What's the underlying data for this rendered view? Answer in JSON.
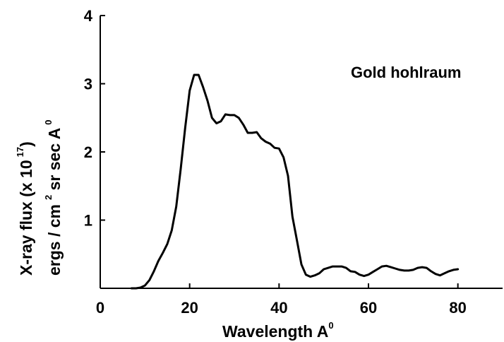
{
  "chart_data": {
    "type": "line",
    "annotation": "Gold hohlraum",
    "xlabel": "Wavelength A",
    "xlabel_sup": "0",
    "ylabel_line1": "X-ray flux (x 10",
    "ylabel_line1_sup": "17",
    "ylabel_line1_end": ")",
    "ylabel_line2_a": "ergs / cm",
    "ylabel_line2_sup1": "2",
    "ylabel_line2_b": " sr sec A",
    "ylabel_line2_sup2": "0",
    "xlim": [
      0,
      90
    ],
    "ylim": [
      0,
      4
    ],
    "x_ticks": [
      0,
      20,
      40,
      60,
      80
    ],
    "x_tick_labels": [
      "0",
      "20",
      "40",
      "60",
      "80"
    ],
    "y_ticks": [
      1,
      2,
      3,
      4
    ],
    "y_tick_labels": [
      "1",
      "2",
      "3",
      "4"
    ],
    "grid": false,
    "legend": "none",
    "line_color": "#000000",
    "series": [
      {
        "x": [
          7,
          8,
          9,
          10,
          11,
          12,
          13,
          14,
          15,
          16,
          17,
          18,
          19,
          20,
          21,
          22,
          23,
          24,
          25,
          26,
          27,
          28,
          29,
          30,
          31,
          32,
          33,
          34,
          35,
          36,
          37,
          38,
          39,
          40,
          41,
          42,
          43,
          44,
          45,
          46,
          47,
          48,
          49,
          50,
          51,
          52,
          53,
          54,
          55,
          56,
          57,
          58,
          59,
          60,
          61,
          62,
          63,
          64,
          65,
          66,
          67,
          68,
          69,
          70,
          71,
          72,
          73,
          74,
          75,
          76,
          77,
          78,
          79,
          80
        ],
        "y": [
          0.0,
          0.0,
          0.01,
          0.04,
          0.12,
          0.25,
          0.4,
          0.52,
          0.65,
          0.85,
          1.2,
          1.75,
          2.35,
          2.9,
          3.13,
          3.13,
          2.95,
          2.75,
          2.5,
          2.42,
          2.45,
          2.55,
          2.54,
          2.54,
          2.5,
          2.4,
          2.28,
          2.28,
          2.29,
          2.2,
          2.15,
          2.12,
          2.06,
          2.05,
          1.92,
          1.65,
          1.05,
          0.7,
          0.35,
          0.2,
          0.17,
          0.19,
          0.22,
          0.28,
          0.3,
          0.32,
          0.32,
          0.32,
          0.3,
          0.25,
          0.24,
          0.2,
          0.18,
          0.2,
          0.24,
          0.28,
          0.32,
          0.33,
          0.31,
          0.29,
          0.27,
          0.26,
          0.26,
          0.27,
          0.3,
          0.31,
          0.3,
          0.25,
          0.21,
          0.19,
          0.22,
          0.25,
          0.27,
          0.28
        ]
      }
    ]
  }
}
